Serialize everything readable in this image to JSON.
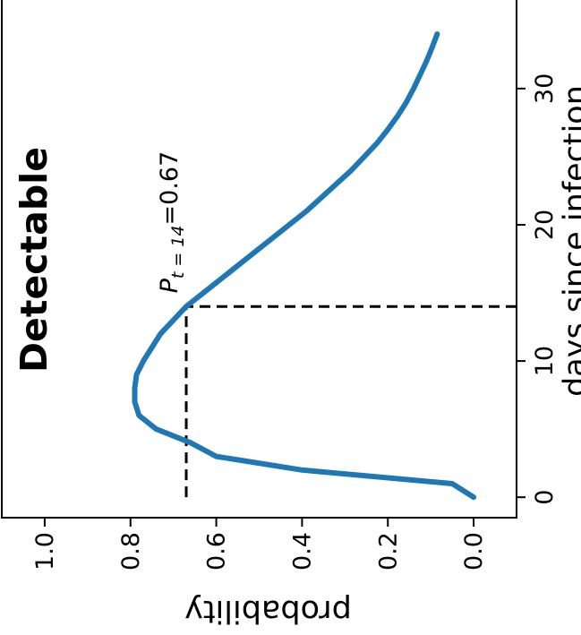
{
  "chart_data": {
    "type": "line",
    "title": "Detectable",
    "xlabel": "days since infection",
    "ylabel": "probability",
    "xlim": [
      -1.5,
      36.5
    ],
    "ylim": [
      -0.1,
      1.1
    ],
    "x_ticks": [
      0,
      10,
      20,
      30
    ],
    "x_tick_labels": [
      "0",
      "10",
      "20",
      "30"
    ],
    "y_ticks": [
      0.0,
      0.2,
      0.4,
      0.6,
      0.8,
      1.0
    ],
    "y_tick_labels": [
      "0.0",
      "0.2",
      "0.4",
      "0.6",
      "0.8",
      "1.0"
    ],
    "grid": false,
    "orientation": "rotated 90 degrees counter-clockwise",
    "series": [
      {
        "color": "#1f77b4",
        "x": [
          0,
          1,
          2,
          3,
          4,
          5,
          6,
          7,
          8,
          9,
          10,
          11,
          12,
          13,
          14,
          15,
          16,
          17,
          18,
          19,
          20,
          21,
          22,
          23,
          24,
          25,
          26,
          27,
          28,
          29,
          30,
          31,
          32,
          33,
          34
        ],
        "y": [
          0.0,
          0.05,
          0.4,
          0.6,
          0.66,
          0.74,
          0.78,
          0.79,
          0.79,
          0.786,
          0.77,
          0.75,
          0.73,
          0.7,
          0.67,
          0.63,
          0.59,
          0.55,
          0.51,
          0.47,
          0.43,
          0.39,
          0.355,
          0.32,
          0.285,
          0.255,
          0.225,
          0.2,
          0.177,
          0.157,
          0.14,
          0.125,
          0.11,
          0.097,
          0.085
        ]
      }
    ],
    "reference_lines": {
      "x": 14,
      "y": 0.67,
      "style": "dashed"
    },
    "annotation": {
      "label": "P",
      "subscript": "t = 14",
      "value_text": "=0.67",
      "x": 15.5,
      "y": 0.67
    }
  }
}
